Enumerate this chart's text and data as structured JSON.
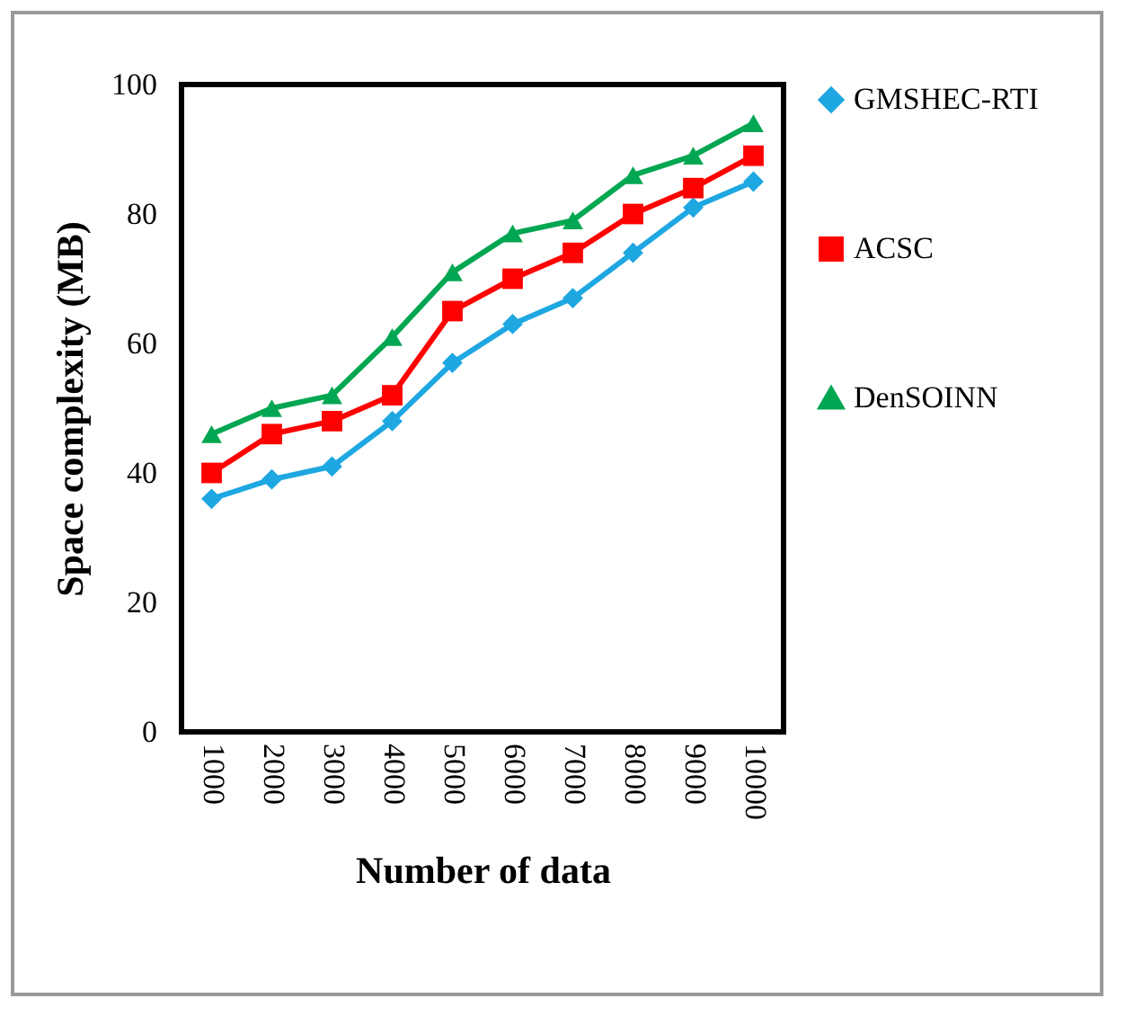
{
  "chart_data": {
    "type": "line",
    "xlabel": "Number of data",
    "ylabel": "Space complexity (MB)",
    "categories": [
      "1000",
      "2000",
      "3000",
      "4000",
      "5000",
      "6000",
      "7000",
      "8000",
      "9000",
      "10000"
    ],
    "series": [
      {
        "name": "GMSHEC-RTI",
        "color": "#1ea7e1",
        "marker": "diamond",
        "values": [
          36,
          39,
          41,
          48,
          57,
          63,
          67,
          74,
          81,
          85
        ]
      },
      {
        "name": "ACSC",
        "color": "#ff0000",
        "marker": "square",
        "values": [
          40,
          46,
          48,
          52,
          65,
          70,
          74,
          80,
          84,
          89
        ]
      },
      {
        "name": "DenSOINN",
        "color": "#00a651",
        "marker": "triangle",
        "values": [
          46,
          50,
          52,
          61,
          71,
          77,
          79,
          86,
          89,
          94
        ]
      }
    ],
    "ylim": [
      0,
      100
    ],
    "yticks": [
      0,
      20,
      40,
      60,
      80,
      100
    ],
    "grid": false,
    "legend": "right"
  }
}
